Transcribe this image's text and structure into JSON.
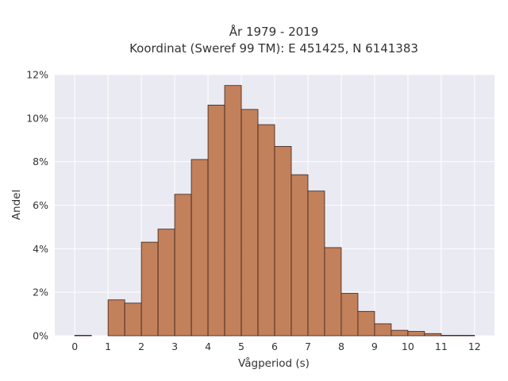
{
  "chart_data": {
    "type": "bar",
    "title": "År 1979 - 2019",
    "subtitle": "Koordinat (Sweref 99 TM): E 451425, N 6141383",
    "xlabel": "Vågperiod (s)",
    "ylabel": "Andel",
    "bin_width": 0.5,
    "bin_starts": [
      0,
      0.5,
      1,
      1.5,
      2,
      2.5,
      3,
      3.5,
      4,
      4.5,
      5,
      5.5,
      6,
      6.5,
      7,
      7.5,
      8,
      8.5,
      9,
      9.5,
      10,
      10.5,
      11,
      11.5
    ],
    "values": [
      0.02,
      0,
      1.65,
      1.5,
      4.3,
      4.9,
      6.5,
      8.1,
      10.6,
      11.5,
      10.4,
      9.7,
      8.7,
      7.4,
      6.65,
      4.05,
      1.95,
      1.12,
      0.55,
      0.25,
      0.2,
      0.1,
      0.02,
      0.02
    ],
    "xlim": [
      -0.6,
      12.6
    ],
    "ylim": [
      0,
      12
    ],
    "x_ticks": [
      "0",
      "1",
      "2",
      "3",
      "4",
      "5",
      "6",
      "7",
      "8",
      "9",
      "10",
      "11",
      "12"
    ],
    "y_ticks": [
      "0%",
      "2%",
      "4%",
      "6%",
      "8%",
      "10%",
      "12%"
    ],
    "grid": true,
    "bar_color": "#c07a52",
    "bar_edge_color": "#3a2218",
    "plot_bg": "#eaeaf2"
  }
}
